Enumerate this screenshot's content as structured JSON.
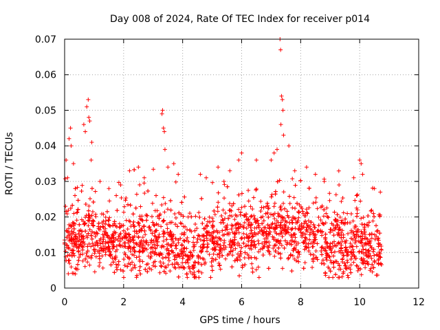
{
  "chart_data": {
    "type": "scatter",
    "title": "Day 008 of 2024, Rate Of TEC Index for receiver p014",
    "xlabel": "GPS time / hours",
    "ylabel": "ROTI / TECUs",
    "xlim": [
      0,
      12
    ],
    "ylim": [
      0,
      0.07
    ],
    "x_ticks": [
      0,
      2,
      4,
      6,
      8,
      10,
      12
    ],
    "x_tick_labels": [
      "0",
      "2",
      "4",
      "6",
      "8",
      "10",
      "12"
    ],
    "y_ticks": [
      0,
      0.01,
      0.02,
      0.03,
      0.04,
      0.05,
      0.06,
      0.07
    ],
    "y_tick_labels": [
      "0",
      "0.01",
      "0.02",
      "0.03",
      "0.04",
      "0.05",
      "0.06",
      "0.07"
    ],
    "grid": true,
    "marker": "+",
    "color": "#ff0000",
    "data_extent_hours": [
      0,
      10.75
    ],
    "series": [
      {
        "name": "ROTI",
        "points": [
          [
            0.05,
            0.036
          ],
          [
            0.1,
            0.031
          ],
          [
            0.15,
            0.042
          ],
          [
            0.2,
            0.045
          ],
          [
            0.22,
            0.04
          ],
          [
            0.3,
            0.035
          ],
          [
            0.35,
            0.026
          ],
          [
            0.65,
            0.046
          ],
          [
            0.7,
            0.044
          ],
          [
            0.75,
            0.051
          ],
          [
            0.8,
            0.053
          ],
          [
            0.82,
            0.048
          ],
          [
            0.85,
            0.047
          ],
          [
            0.9,
            0.036
          ],
          [
            0.92,
            0.041
          ],
          [
            1.2,
            0.03
          ],
          [
            1.5,
            0.028
          ],
          [
            1.75,
            0.026
          ],
          [
            1.9,
            0.029
          ],
          [
            2.2,
            0.033
          ],
          [
            2.5,
            0.034
          ],
          [
            2.7,
            0.031
          ],
          [
            3.3,
            0.049
          ],
          [
            3.32,
            0.05
          ],
          [
            3.35,
            0.045
          ],
          [
            3.38,
            0.044
          ],
          [
            3.4,
            0.039
          ],
          [
            3.5,
            0.034
          ],
          [
            3.7,
            0.035
          ],
          [
            3.85,
            0.032
          ],
          [
            4.6,
            0.032
          ],
          [
            4.8,
            0.031
          ],
          [
            5.2,
            0.034
          ],
          [
            5.4,
            0.03
          ],
          [
            5.6,
            0.033
          ],
          [
            5.9,
            0.036
          ],
          [
            6.0,
            0.038
          ],
          [
            6.5,
            0.036
          ],
          [
            7.0,
            0.036
          ],
          [
            7.1,
            0.038
          ],
          [
            7.2,
            0.039
          ],
          [
            7.3,
            0.07
          ],
          [
            7.32,
            0.067
          ],
          [
            7.35,
            0.054
          ],
          [
            7.38,
            0.053
          ],
          [
            7.4,
            0.05
          ],
          [
            7.33,
            0.046
          ],
          [
            7.42,
            0.043
          ],
          [
            7.6,
            0.04
          ],
          [
            7.8,
            0.033
          ],
          [
            8.2,
            0.034
          ],
          [
            8.5,
            0.032
          ],
          [
            8.8,
            0.03
          ],
          [
            9.3,
            0.029
          ],
          [
            9.8,
            0.031
          ],
          [
            10.0,
            0.036
          ],
          [
            10.05,
            0.035
          ],
          [
            10.1,
            0.032
          ],
          [
            10.5,
            0.028
          ],
          [
            10.7,
            0.027
          ]
        ]
      }
    ]
  }
}
